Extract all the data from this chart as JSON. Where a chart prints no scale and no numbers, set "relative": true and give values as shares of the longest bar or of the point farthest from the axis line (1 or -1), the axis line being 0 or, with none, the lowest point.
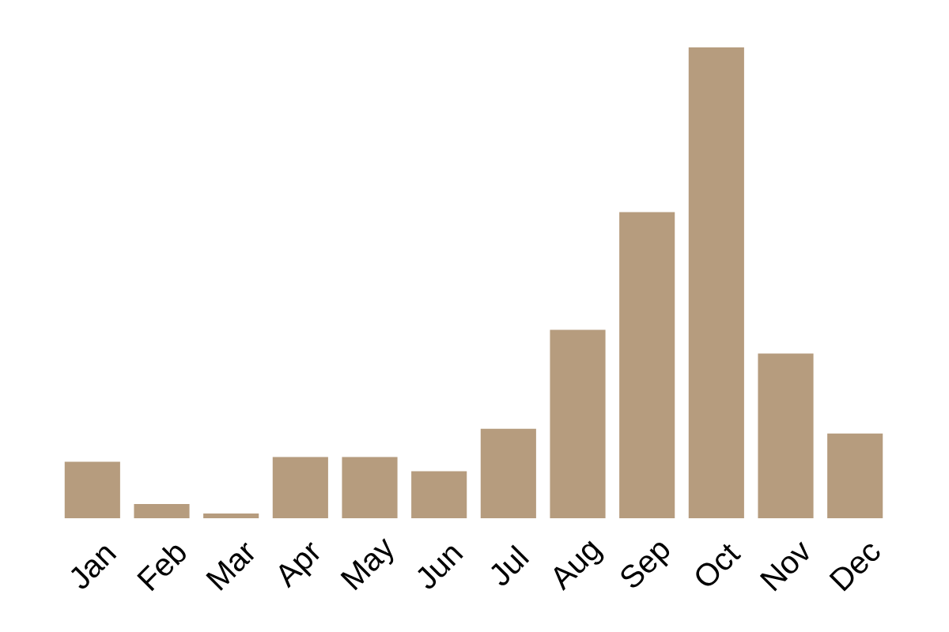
{
  "chart_data": {
    "type": "bar",
    "categories": [
      "Jan",
      "Feb",
      "Mar",
      "Apr",
      "May",
      "Jun",
      "Jul",
      "Aug",
      "Sep",
      "Oct",
      "Nov",
      "Dec"
    ],
    "values": [
      0.12,
      0.03,
      0.01,
      0.13,
      0.13,
      0.1,
      0.19,
      0.4,
      0.65,
      1,
      0.35,
      0.18
    ],
    "color": "#b69c7e",
    "relative": true
  }
}
